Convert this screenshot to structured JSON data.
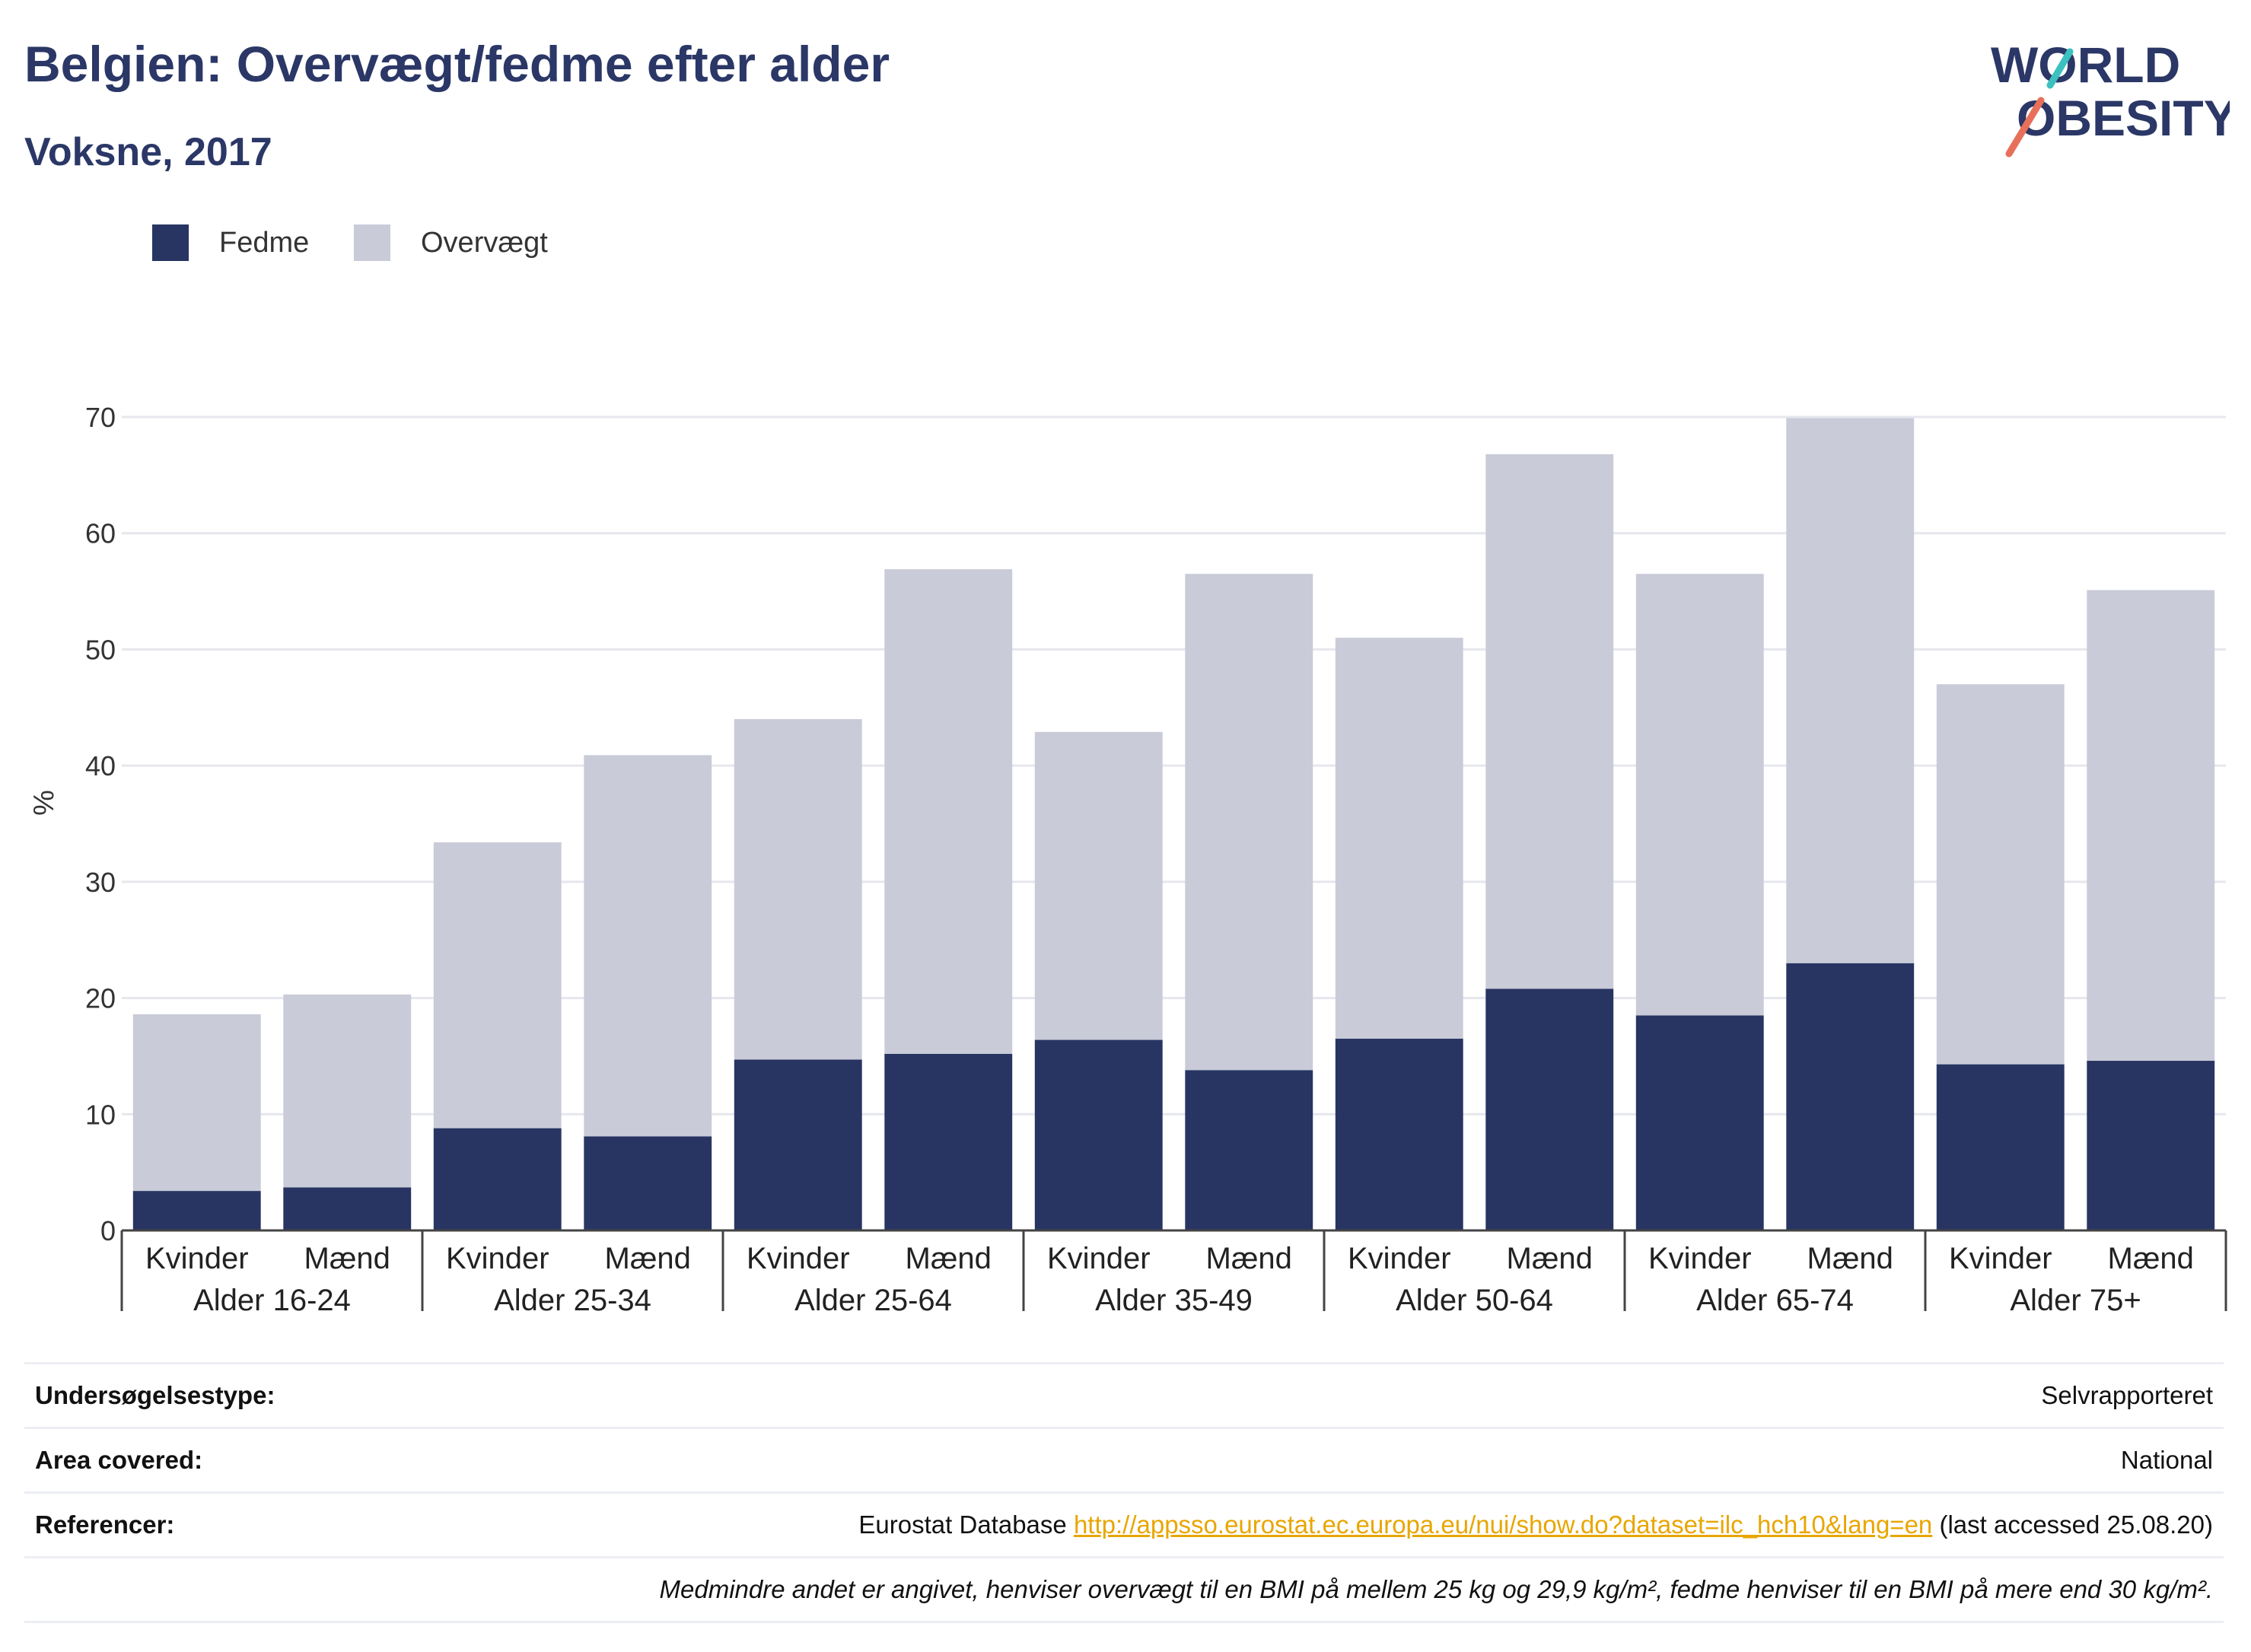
{
  "header": {
    "title": "Belgien: Overvægt/fedme efter alder",
    "subtitle": "Voksne, 2017"
  },
  "logo": {
    "line1": "WORLD",
    "line2": "OBESITY"
  },
  "colors": {
    "fedme": "#283563",
    "overvaegt": "#c9cbd8",
    "title": "#2b3766",
    "link": "#e8a600"
  },
  "legend": [
    {
      "label": "Fedme",
      "color": "#283563"
    },
    {
      "label": "Overvægt",
      "color": "#c9cbd8"
    }
  ],
  "chart_data": {
    "type": "bar",
    "stacked": true,
    "ylabel": "%",
    "ylim": [
      0,
      70
    ],
    "yticks": [
      0,
      10,
      20,
      30,
      40,
      50,
      60,
      70
    ],
    "grid": true,
    "legend_position": "top-left",
    "groups": [
      "Alder 16-24",
      "Alder 25-34",
      "Alder 25-64",
      "Alder 35-49",
      "Alder 50-64",
      "Alder 65-74",
      "Alder 75+"
    ],
    "sub_categories": [
      "Kvinder",
      "Mænd"
    ],
    "series": [
      {
        "name": "Fedme",
        "values": [
          3.4,
          3.7,
          8.8,
          8.1,
          14.7,
          15.2,
          16.4,
          13.8,
          16.5,
          20.8,
          18.5,
          23.0,
          14.3,
          14.6
        ]
      },
      {
        "name": "Overvægt",
        "values": [
          15.2,
          16.6,
          24.6,
          32.8,
          29.3,
          41.7,
          26.5,
          42.7,
          34.5,
          46.0,
          38.0,
          46.9,
          32.7,
          40.5
        ]
      }
    ]
  },
  "info": {
    "rows": [
      {
        "key": "Undersøgelsestype:",
        "value": "Selvrapporteret"
      },
      {
        "key": "Area covered:",
        "value": "National"
      }
    ],
    "references": {
      "key": "Referencer:",
      "prefix": "Eurostat Database",
      "link": "http://appsso.eurostat.ec.europa.eu/nui/show.do?dataset=ilc_hch10&lang=en",
      "suffix": "(last accessed 25.08.20)"
    },
    "note": "Medmindre andet er angivet, henviser overvægt til en BMI på mellem 25 kg og 29,9 kg/m², fedme henviser til en BMI på mere end 30 kg/m²."
  }
}
